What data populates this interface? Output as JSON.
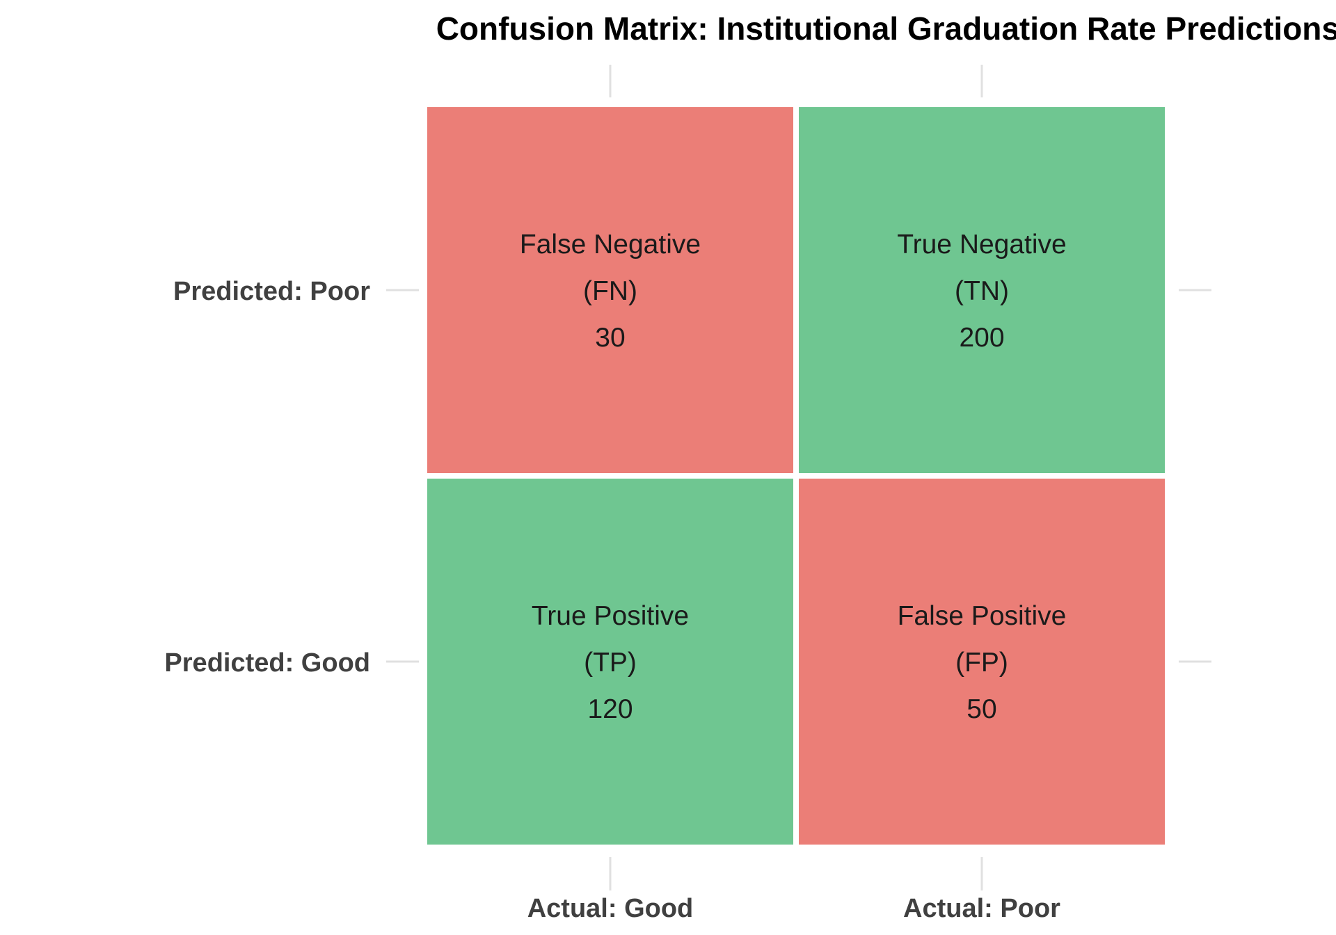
{
  "chart_data": {
    "type": "heatmap",
    "title": "Confusion Matrix: Institutional Graduation Rate Predictions",
    "x_categories": [
      "Actual: Good",
      "Actual: Poor"
    ],
    "y_categories": [
      "Predicted: Poor",
      "Predicted: Good"
    ],
    "cells": [
      {
        "row": 0,
        "col": 0,
        "label": "False Negative",
        "abbr": "(FN)",
        "value": 30,
        "kind": "incorrect"
      },
      {
        "row": 0,
        "col": 1,
        "label": "True Negative",
        "abbr": "(TN)",
        "value": 200,
        "kind": "correct"
      },
      {
        "row": 1,
        "col": 0,
        "label": "True Positive",
        "abbr": "(TP)",
        "value": 120,
        "kind": "correct"
      },
      {
        "row": 1,
        "col": 1,
        "label": "False Positive",
        "abbr": "(FP)",
        "value": 50,
        "kind": "incorrect"
      }
    ],
    "colors": {
      "correct": "#6fc691",
      "incorrect": "#eb7e77"
    },
    "grid": false,
    "legend": "none"
  }
}
